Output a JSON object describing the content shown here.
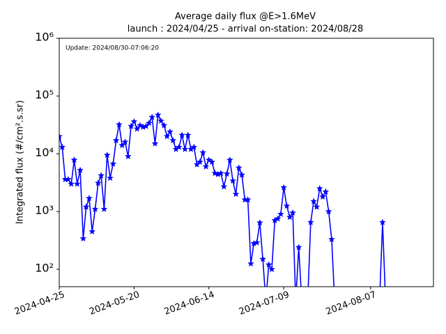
{
  "chart_data": {
    "type": "line",
    "title": "Average daily flux @E>1.6MeV",
    "subtitle": "launch : 2024/04/25 - arrival on-station: 2024/08/28",
    "annotation": "Update: 2024/08/30-07:06:20",
    "y_label": "Integrated flux (#/cm².s.sr)",
    "y_log": true,
    "xlim": [
      "2024-04-25",
      "2024-08-28"
    ],
    "ylim": [
      50,
      1000000
    ],
    "xticks": [
      "2024-04-25",
      "2024-05-20",
      "2024-06-14",
      "2024-07-09",
      "2024-08-07"
    ],
    "yticks": [
      {
        "value": 100,
        "label": "10²"
      },
      {
        "value": 1000,
        "label": "10³"
      },
      {
        "value": 10000,
        "label": "10⁴"
      },
      {
        "value": 100000,
        "label": "10⁵"
      },
      {
        "value": 1000000,
        "label": "10⁶"
      }
    ],
    "x": [
      "2024-04-25",
      "2024-04-26",
      "2024-04-27",
      "2024-04-28",
      "2024-04-29",
      "2024-04-30",
      "2024-05-01",
      "2024-05-02",
      "2024-05-03",
      "2024-05-04",
      "2024-05-05",
      "2024-05-06",
      "2024-05-07",
      "2024-05-08",
      "2024-05-09",
      "2024-05-10",
      "2024-05-11",
      "2024-05-12",
      "2024-05-13",
      "2024-05-14",
      "2024-05-15",
      "2024-05-16",
      "2024-05-17",
      "2024-05-18",
      "2024-05-19",
      "2024-05-20",
      "2024-05-21",
      "2024-05-22",
      "2024-05-23",
      "2024-05-24",
      "2024-05-25",
      "2024-05-26",
      "2024-05-27",
      "2024-05-28",
      "2024-05-29",
      "2024-05-30",
      "2024-05-31",
      "2024-06-01",
      "2024-06-02",
      "2024-06-03",
      "2024-06-04",
      "2024-06-05",
      "2024-06-06",
      "2024-06-07",
      "2024-06-08",
      "2024-06-09",
      "2024-06-10",
      "2024-06-11",
      "2024-06-12",
      "2024-06-13",
      "2024-06-14",
      "2024-06-15",
      "2024-06-16",
      "2024-06-17",
      "2024-06-18",
      "2024-06-19",
      "2024-06-20",
      "2024-06-21",
      "2024-06-22",
      "2024-06-23",
      "2024-06-24",
      "2024-06-25",
      "2024-06-26",
      "2024-06-27",
      "2024-06-28",
      "2024-06-29",
      "2024-06-30",
      "2024-07-01",
      "2024-07-02",
      "2024-07-03",
      "2024-07-04",
      "2024-07-05",
      "2024-07-06",
      "2024-07-07",
      "2024-07-08",
      "2024-07-09",
      "2024-07-10",
      "2024-07-11",
      "2024-07-12",
      "2024-07-13",
      "2024-07-14",
      "2024-07-15",
      "2024-07-16",
      "2024-07-17",
      "2024-07-18",
      "2024-07-19",
      "2024-07-20",
      "2024-07-21",
      "2024-07-22",
      "2024-07-23",
      "2024-07-24",
      "2024-07-25",
      "2024-07-26",
      "2024-08-10",
      "2024-08-11",
      "2024-08-12"
    ],
    "series": [
      {
        "color": "#0000ff",
        "values": [
          20000,
          13000,
          3600,
          3600,
          3000,
          7800,
          3000,
          5200,
          340,
          1200,
          1700,
          450,
          1100,
          3100,
          4200,
          1100,
          9500,
          3800,
          6700,
          17000,
          32000,
          14000,
          16000,
          9000,
          30000,
          36000,
          27000,
          31000,
          29000,
          30000,
          34000,
          43000,
          15000,
          47000,
          37000,
          31000,
          20000,
          24000,
          17000,
          12000,
          13000,
          21000,
          12000,
          21000,
          12000,
          13000,
          6500,
          7200,
          10500,
          6000,
          7800,
          7200,
          4600,
          4400,
          4600,
          2700,
          4500,
          7800,
          3400,
          2000,
          5700,
          4300,
          1600,
          1600,
          125,
          280,
          290,
          640,
          150,
          0,
          120,
          100,
          700,
          750,
          900,
          2600,
          1250,
          800,
          950,
          0,
          240,
          0,
          0,
          0,
          650,
          1500,
          1200,
          2500,
          1800,
          2200,
          1000,
          330,
          0,
          0,
          650,
          0
        ]
      }
    ]
  }
}
